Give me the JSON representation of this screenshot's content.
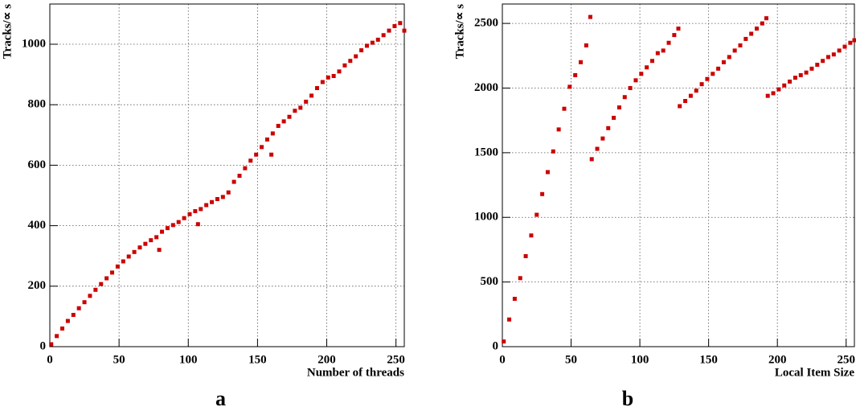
{
  "chart_data": [
    {
      "type": "scatter",
      "label": "a",
      "xlabel": "Number of threads",
      "ylabel": "Tracks/∝ s",
      "color": "#cc0000",
      "grid": true,
      "xlim": [
        0,
        256
      ],
      "ylim": [
        0,
        1133
      ],
      "xticks": [
        0,
        50,
        100,
        150,
        200,
        250
      ],
      "yticks": [
        0,
        200,
        400,
        600,
        800,
        1000
      ],
      "x": [
        1,
        5,
        9,
        13,
        17,
        21,
        25,
        29,
        33,
        37,
        41,
        45,
        49,
        53,
        57,
        61,
        65,
        69,
        73,
        77,
        79,
        81,
        85,
        89,
        93,
        97,
        101,
        105,
        107,
        109,
        113,
        117,
        121,
        125,
        129,
        133,
        137,
        141,
        145,
        149,
        153,
        157,
        160,
        161,
        165,
        169,
        173,
        177,
        181,
        185,
        189,
        193,
        197,
        201,
        205,
        209,
        213,
        217,
        221,
        225,
        229,
        233,
        237,
        241,
        245,
        249,
        253,
        256
      ],
      "y": [
        8,
        35,
        60,
        85,
        105,
        127,
        147,
        168,
        188,
        207,
        226,
        245,
        265,
        282,
        298,
        313,
        328,
        340,
        352,
        362,
        320,
        380,
        392,
        402,
        412,
        425,
        438,
        448,
        405,
        455,
        468,
        478,
        488,
        495,
        510,
        545,
        565,
        590,
        615,
        635,
        660,
        685,
        635,
        705,
        730,
        745,
        760,
        780,
        790,
        810,
        830,
        855,
        875,
        890,
        895,
        910,
        930,
        945,
        960,
        980,
        995,
        1005,
        1015,
        1030,
        1045,
        1060,
        1070,
        1045
      ]
    },
    {
      "type": "scatter",
      "label": "b",
      "xlabel": "Local Item Size",
      "ylabel": "Tracks/∝ s",
      "color": "#cc0000",
      "grid": true,
      "xlim": [
        0,
        256
      ],
      "ylim": [
        0,
        2650
      ],
      "xticks": [
        0,
        50,
        100,
        150,
        200,
        250
      ],
      "yticks": [
        0,
        500,
        1000,
        1500,
        2000,
        2500
      ],
      "x": [
        1,
        5,
        9,
        13,
        17,
        21,
        25,
        29,
        33,
        37,
        41,
        45,
        49,
        53,
        57,
        61,
        64,
        65,
        69,
        73,
        77,
        81,
        85,
        89,
        93,
        97,
        101,
        105,
        109,
        113,
        117,
        121,
        125,
        128,
        129,
        133,
        137,
        141,
        145,
        149,
        153,
        157,
        161,
        165,
        169,
        173,
        177,
        181,
        185,
        189,
        192,
        193,
        197,
        201,
        205,
        209,
        213,
        217,
        221,
        225,
        229,
        233,
        237,
        241,
        245,
        249,
        253,
        256
      ],
      "y": [
        40,
        210,
        370,
        530,
        700,
        860,
        1020,
        1180,
        1350,
        1510,
        1680,
        1840,
        2010,
        2100,
        2200,
        2330,
        2550,
        1450,
        1530,
        1610,
        1690,
        1770,
        1850,
        1930,
        2000,
        2060,
        2110,
        2160,
        2210,
        2270,
        2290,
        2350,
        2410,
        2460,
        1860,
        1900,
        1940,
        1980,
        2030,
        2070,
        2110,
        2150,
        2200,
        2240,
        2290,
        2330,
        2380,
        2420,
        2460,
        2500,
        2540,
        1940,
        1960,
        1990,
        2020,
        2050,
        2080,
        2100,
        2120,
        2150,
        2180,
        2210,
        2240,
        2260,
        2290,
        2320,
        2350,
        2370
      ]
    }
  ]
}
